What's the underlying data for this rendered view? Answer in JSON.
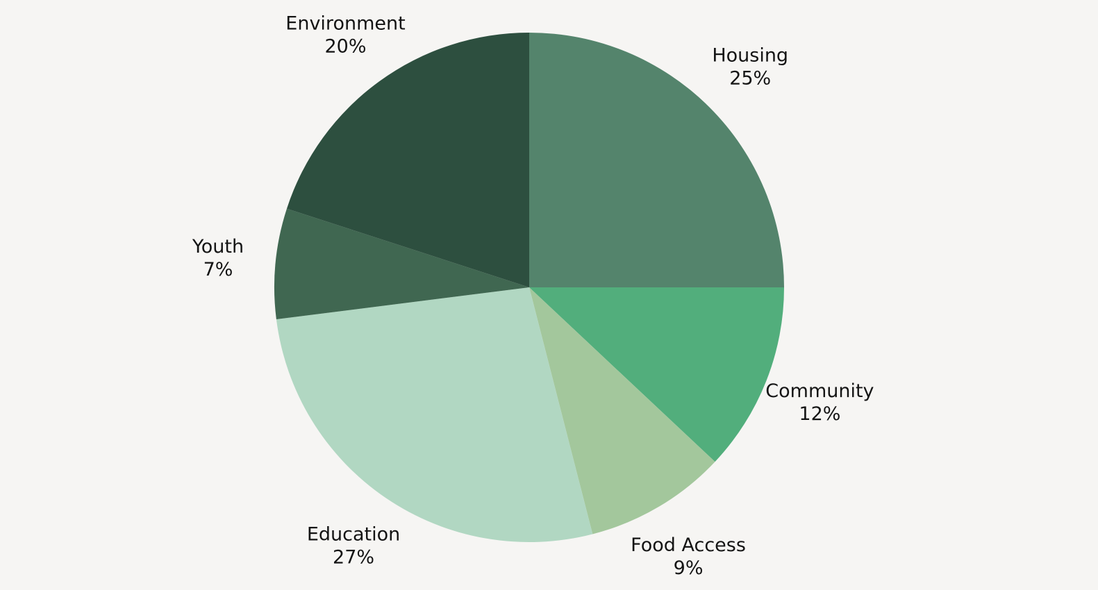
{
  "chart_data": {
    "type": "pie",
    "title": "",
    "start_angle_deg": 0,
    "direction": "clockwise",
    "slices": [
      {
        "label": "Housing",
        "value": 25,
        "value_label": "25%",
        "color": "#54846c"
      },
      {
        "label": "Community",
        "value": 12,
        "value_label": "12%",
        "color": "#52ae7c"
      },
      {
        "label": "Food Access",
        "value": 9,
        "value_label": "9%",
        "color": "#a3c79c"
      },
      {
        "label": "Education",
        "value": 27,
        "value_label": "27%",
        "color": "#b1d7c2"
      },
      {
        "label": "Youth",
        "value": 7,
        "value_label": "7%",
        "color": "#406751"
      },
      {
        "label": "Environment",
        "value": 20,
        "value_label": "20%",
        "color": "#2d4f3f"
      }
    ],
    "legend": "none"
  }
}
